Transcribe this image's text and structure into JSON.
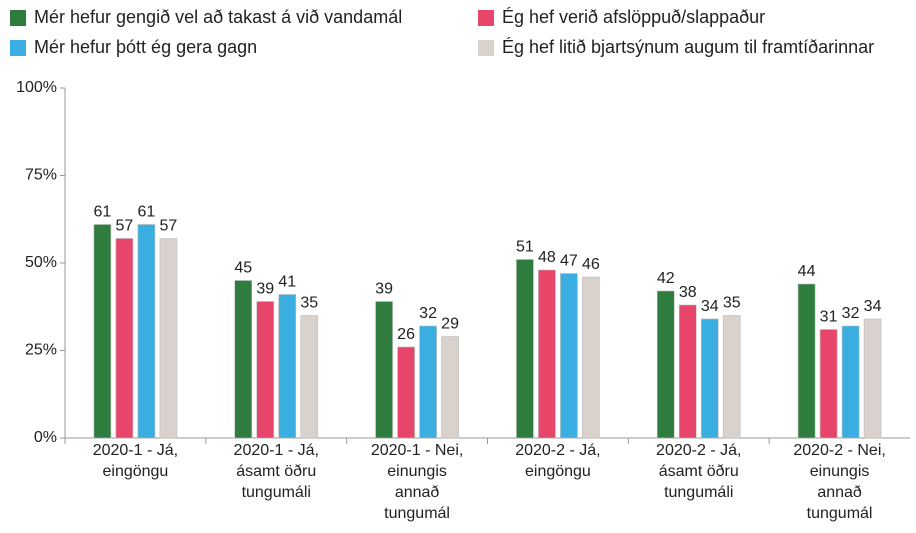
{
  "chart_data": {
    "type": "bar",
    "categories": [
      "2020-1 - Já,\neingöngu",
      "2020-1 - Já,\násamt öðru\ntungumáli",
      "2020-1 - Nei,\neinungis\nannað\ntungumál",
      "2020-2 - Já,\neingöngu",
      "2020-2 - Já,\násamt öðru\ntungumáli",
      "2020-2 - Nei,\neinungis\nannað\ntungumál"
    ],
    "series": [
      {
        "name": "Mér hefur gengið vel að takast á við vandamál",
        "color": "#2e7d3e",
        "values": [
          61,
          45,
          39,
          51,
          42,
          44
        ]
      },
      {
        "name": "Ég hef verið afslöppuð/slappaður",
        "color": "#e8456a",
        "values": [
          57,
          39,
          26,
          48,
          38,
          31
        ]
      },
      {
        "name": "Mér hefur þótt ég gera gagn",
        "color": "#3aaee0",
        "values": [
          61,
          41,
          32,
          47,
          34,
          32
        ]
      },
      {
        "name": "Ég hef litið bjartsýnum augum til framtíðarinnar",
        "color": "#d9d2cc",
        "values": [
          57,
          35,
          29,
          46,
          35,
          34
        ]
      }
    ],
    "ylim": [
      0,
      100
    ],
    "yticks": [
      {
        "value": 0,
        "label": "0%"
      },
      {
        "value": 25,
        "label": "25%"
      },
      {
        "value": 50,
        "label": "50%"
      },
      {
        "value": 75,
        "label": "75%"
      },
      {
        "value": 100,
        "label": "100%"
      }
    ],
    "legend": "top"
  }
}
